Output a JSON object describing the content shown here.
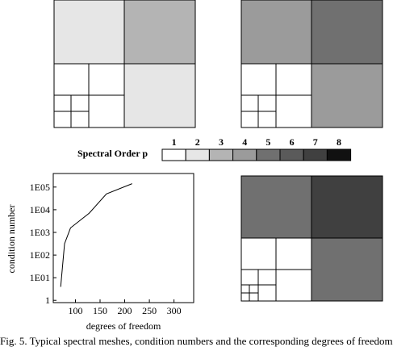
{
  "legend": {
    "title": "Spectral Order p",
    "orders": [
      "1",
      "2",
      "3",
      "4",
      "5",
      "6",
      "7",
      "8"
    ],
    "colors": [
      "#ffffff",
      "#e6e6e6",
      "#b4b4b4",
      "#9b9b9b",
      "#707070",
      "#5a5a5a",
      "#404040",
      "#111111"
    ]
  },
  "meshes": {
    "top_left": {
      "tr_order": 3,
      "br_order": 2
    },
    "top_right": {
      "tl_order": 4,
      "tr_order": 5,
      "br_order": 4
    },
    "bottom_right": {
      "tl_order": 5,
      "tr_order": 7,
      "br_order": 5
    }
  },
  "chart_data": {
    "type": "line",
    "title": "",
    "xlabel": "degrees of freedom",
    "ylabel": "condition number",
    "x_ticks": [
      "100",
      "150",
      "200",
      "250",
      "300"
    ],
    "x_tick_values": [
      100,
      150,
      200,
      250,
      300
    ],
    "y_ticks": [
      "1",
      "1E01",
      "1E02",
      "1E03",
      "1E04",
      "1E05"
    ],
    "y_tick_values": [
      0,
      1,
      2,
      3,
      4,
      5
    ],
    "xlim": [
      55,
      340
    ],
    "ylim_log10": [
      -0.1,
      5.6
    ],
    "y_scale": "log",
    "grid": false,
    "series": [
      {
        "x": [
          70,
          78,
          90,
          128,
          163,
          215
        ],
        "y_log10": [
          0.6,
          2.5,
          3.2,
          3.85,
          4.7,
          5.15
        ]
      }
    ]
  },
  "caption": "Fig. 5. Typical spectral meshes, condition numbers and the corresponding degrees of freedom"
}
